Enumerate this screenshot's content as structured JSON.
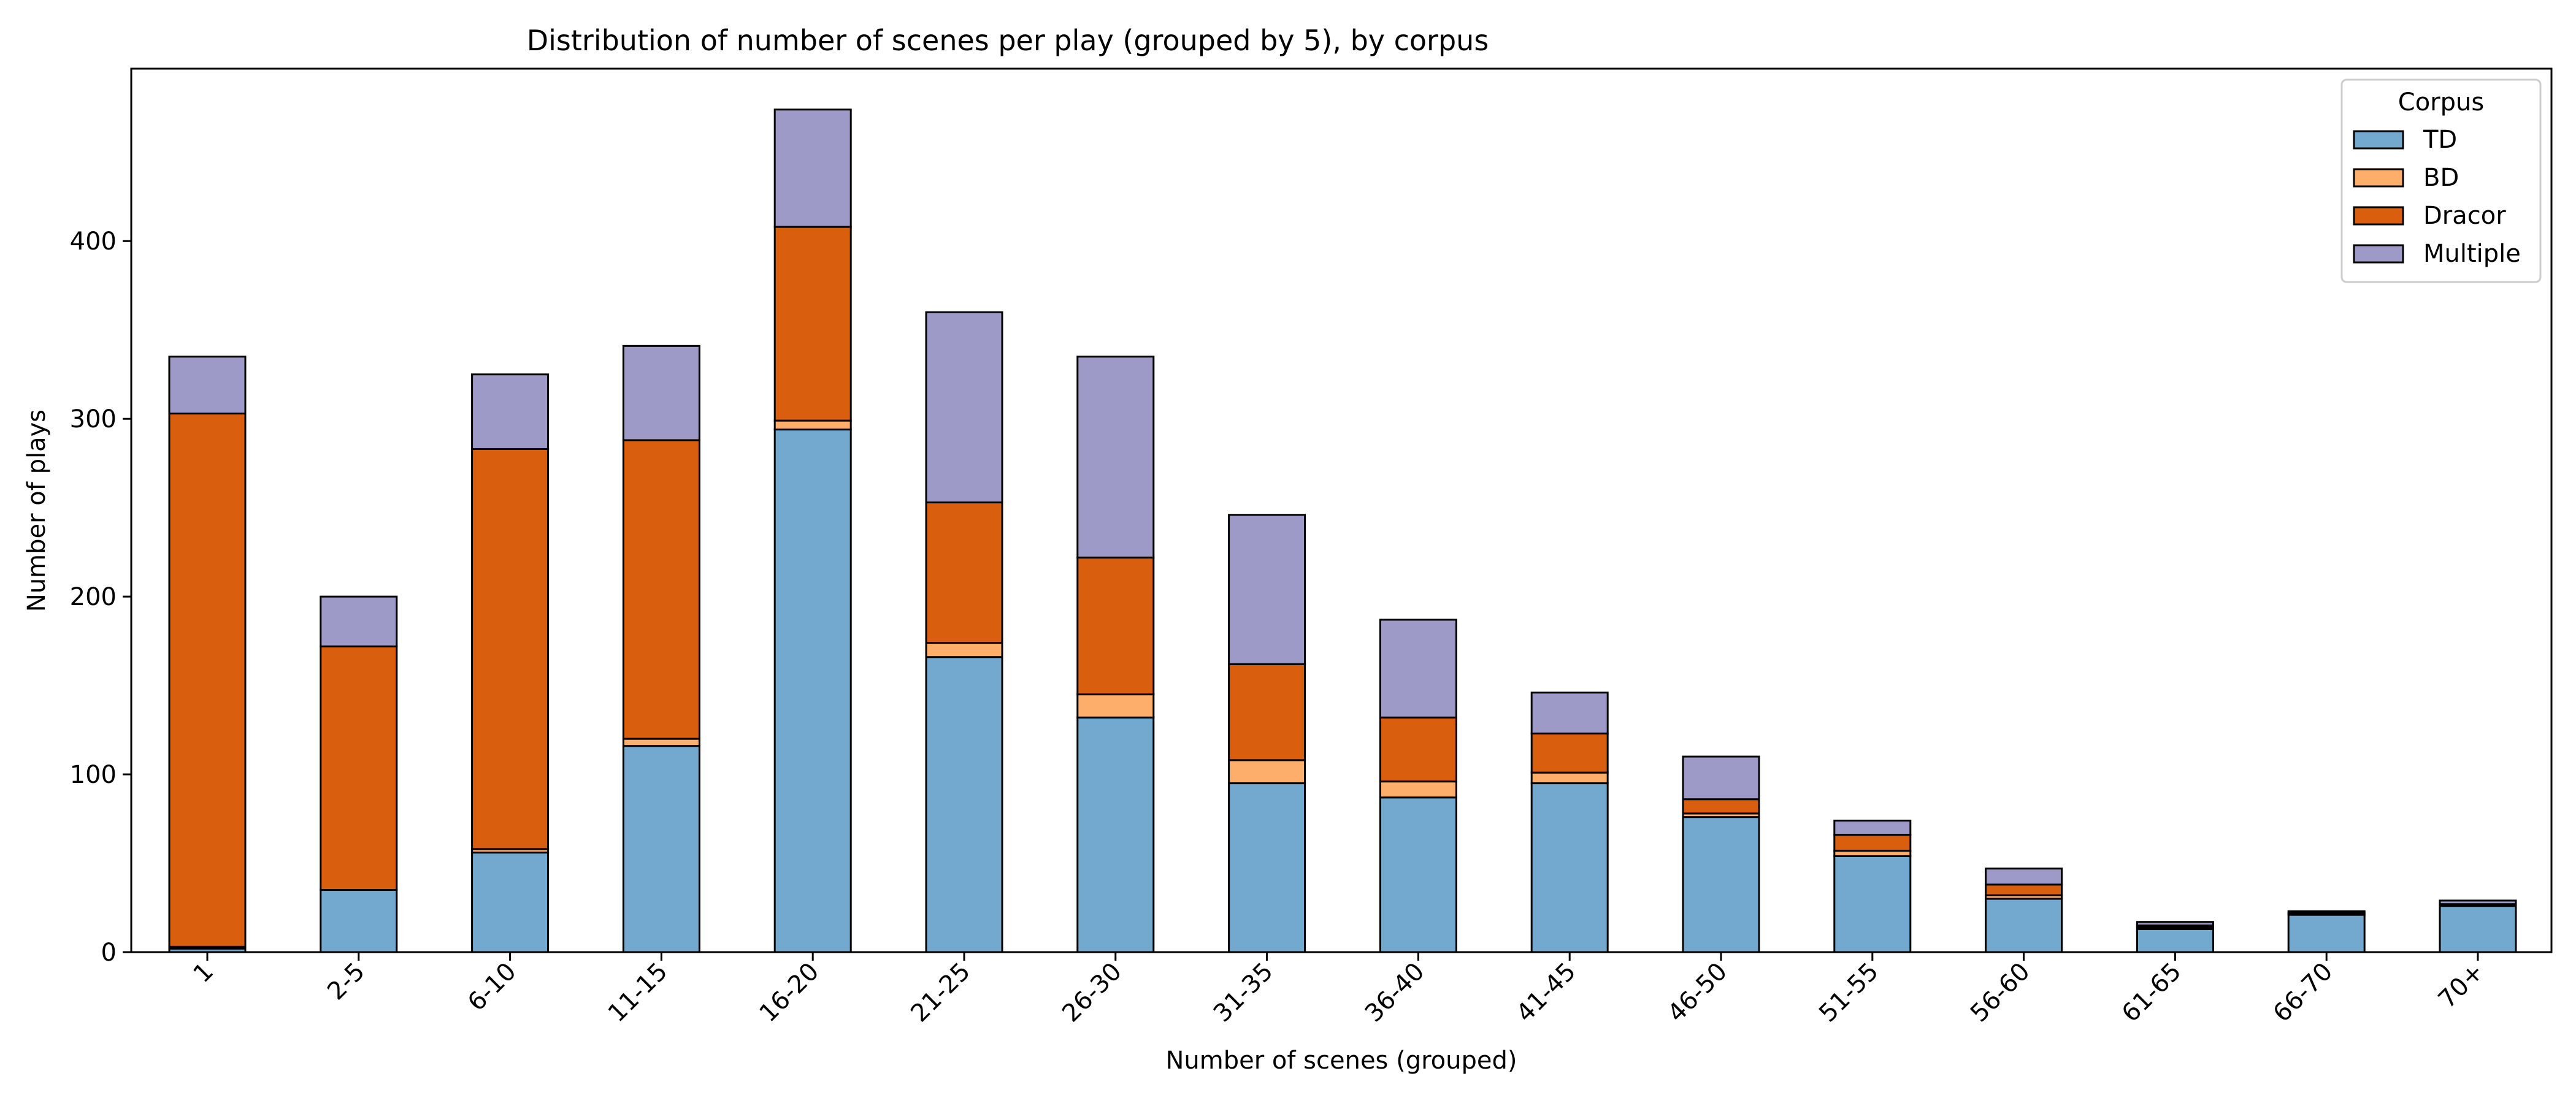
{
  "chart_data": {
    "type": "bar",
    "stacked": true,
    "title": "Distribution of number of scenes per play (grouped by 5), by corpus",
    "xlabel": "Number of scenes (grouped)",
    "ylabel": "Number of plays",
    "ylim": [
      0,
      497
    ],
    "yticks": [
      0,
      100,
      200,
      300,
      400
    ],
    "grid": false,
    "legend": {
      "title": "Corpus",
      "placement": "top-right"
    },
    "categories": [
      "1",
      "2-5",
      "6-10",
      "11-15",
      "16-20",
      "21-25",
      "26-30",
      "31-35",
      "36-40",
      "41-45",
      "46-50",
      "51-55",
      "56-60",
      "61-65",
      "66-70",
      "70+"
    ],
    "series": [
      {
        "name": "TD",
        "color": "#74a9cf",
        "values": [
          2,
          35,
          56,
          116,
          294,
          166,
          132,
          95,
          87,
          95,
          76,
          54,
          30,
          13,
          21,
          26
        ]
      },
      {
        "name": "BD",
        "color": "#fdae6b",
        "values": [
          1,
          0,
          2,
          4,
          5,
          8,
          13,
          13,
          9,
          6,
          2,
          3,
          2,
          1,
          0,
          0
        ]
      },
      {
        "name": "Dracor",
        "color": "#d95f0e",
        "values": [
          300,
          137,
          225,
          168,
          109,
          79,
          77,
          54,
          36,
          22,
          8,
          9,
          6,
          1,
          1,
          1
        ]
      },
      {
        "name": "Multiple",
        "color": "#9e9ac8",
        "values": [
          32,
          28,
          42,
          53,
          66,
          107,
          113,
          84,
          55,
          23,
          24,
          8,
          9,
          2,
          1,
          2
        ]
      }
    ]
  }
}
